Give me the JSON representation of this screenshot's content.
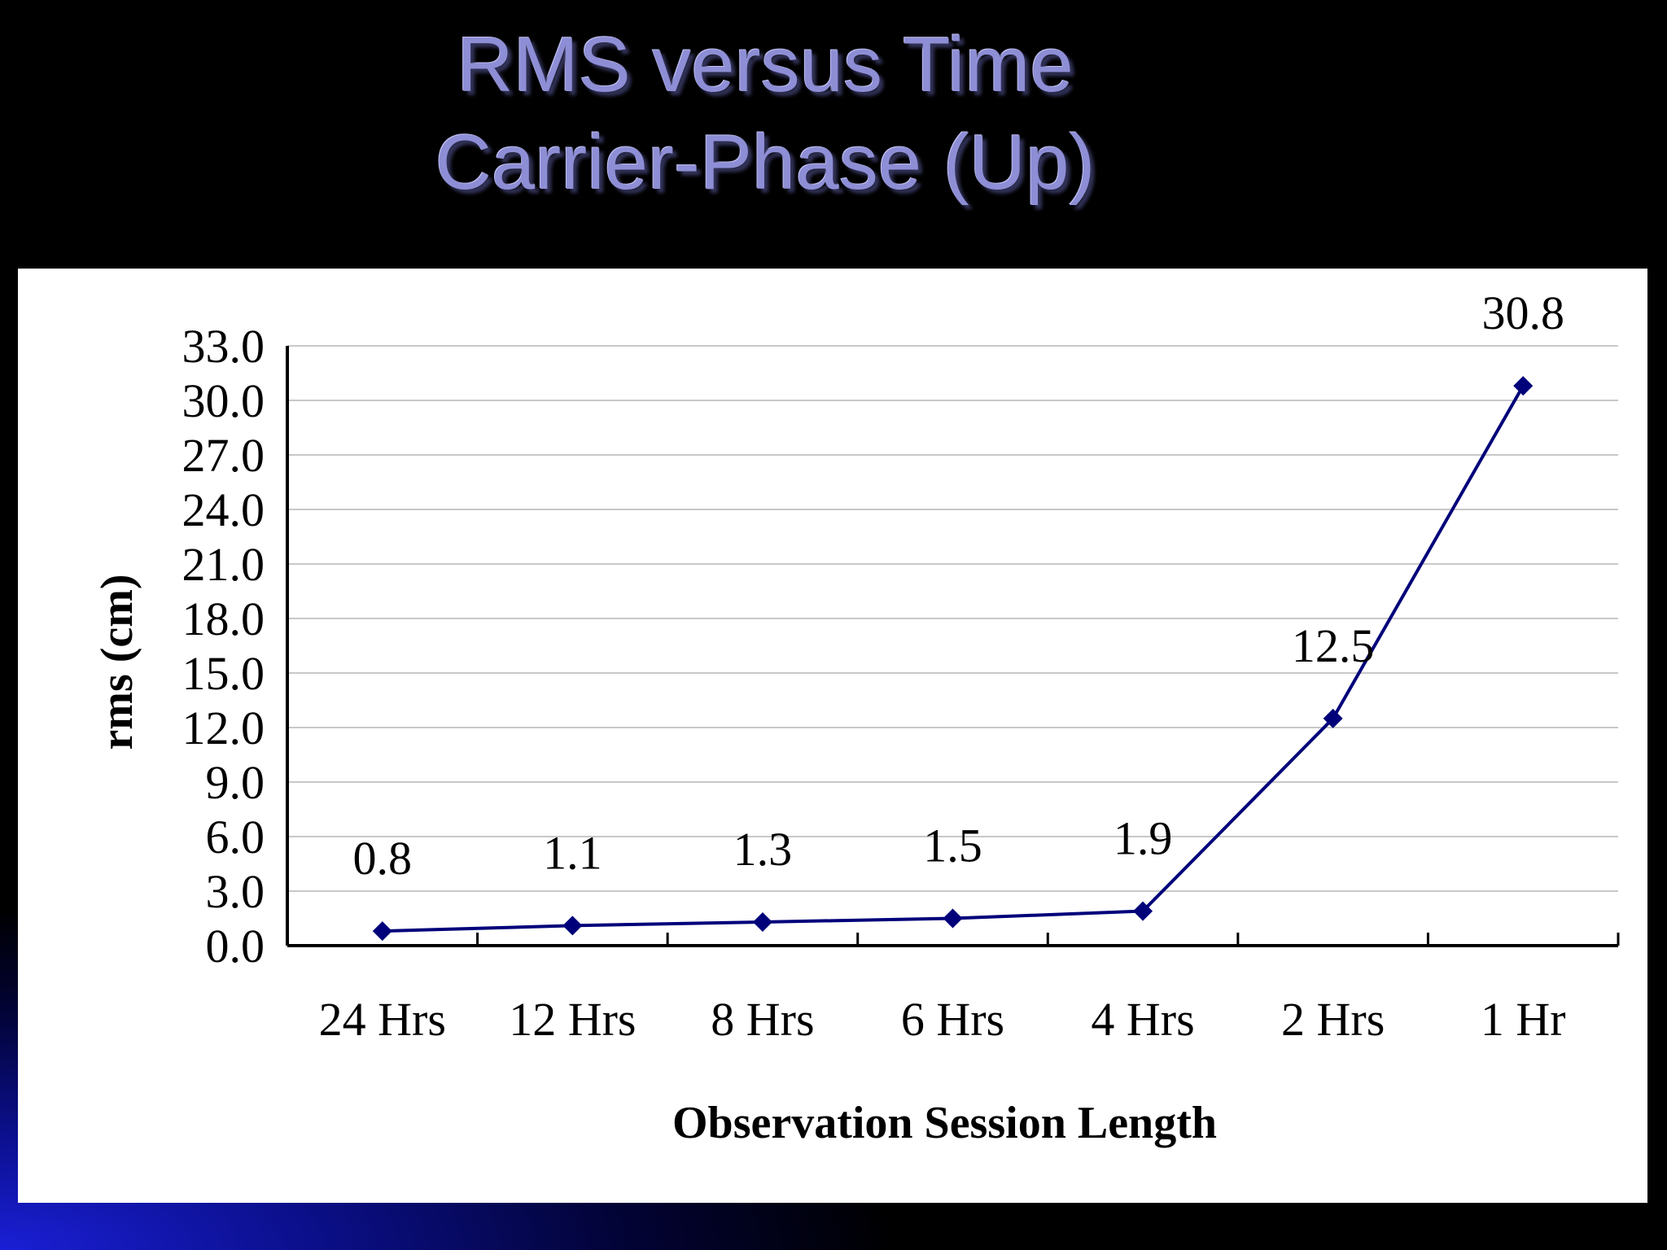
{
  "slide": {
    "title_lines": [
      "RMS versus Time",
      "Carrier-Phase (Up)"
    ]
  },
  "colors": {
    "series": "#00007a",
    "title": "#8e8ed6",
    "grid": "#c8c8c8"
  },
  "chart_data": {
    "type": "line",
    "title": "",
    "xlabel": "Observation Session Length",
    "ylabel": "rms (cm)",
    "categories": [
      "24 Hrs",
      "12 Hrs",
      "8 Hrs",
      "6 Hrs",
      "4 Hrs",
      "2 Hrs",
      "1 Hr"
    ],
    "series": [
      {
        "values": [
          0.8,
          1.1,
          1.3,
          1.5,
          1.9,
          12.5,
          30.8
        ]
      }
    ],
    "data_labels": [
      "0.8",
      "1.1",
      "1.3",
      "1.5",
      "1.9",
      "12.5",
      "30.8"
    ],
    "ylim": [
      0,
      33
    ],
    "yticks": [
      0,
      3,
      6,
      9,
      12,
      15,
      18,
      21,
      24,
      27,
      30,
      33
    ],
    "ytick_labels": [
      "0.0",
      "3.0",
      "6.0",
      "9.0",
      "12.0",
      "15.0",
      "18.0",
      "21.0",
      "24.0",
      "27.0",
      "30.0",
      "33.0"
    ],
    "grid": true,
    "marker": "diamond",
    "legend": "none"
  }
}
